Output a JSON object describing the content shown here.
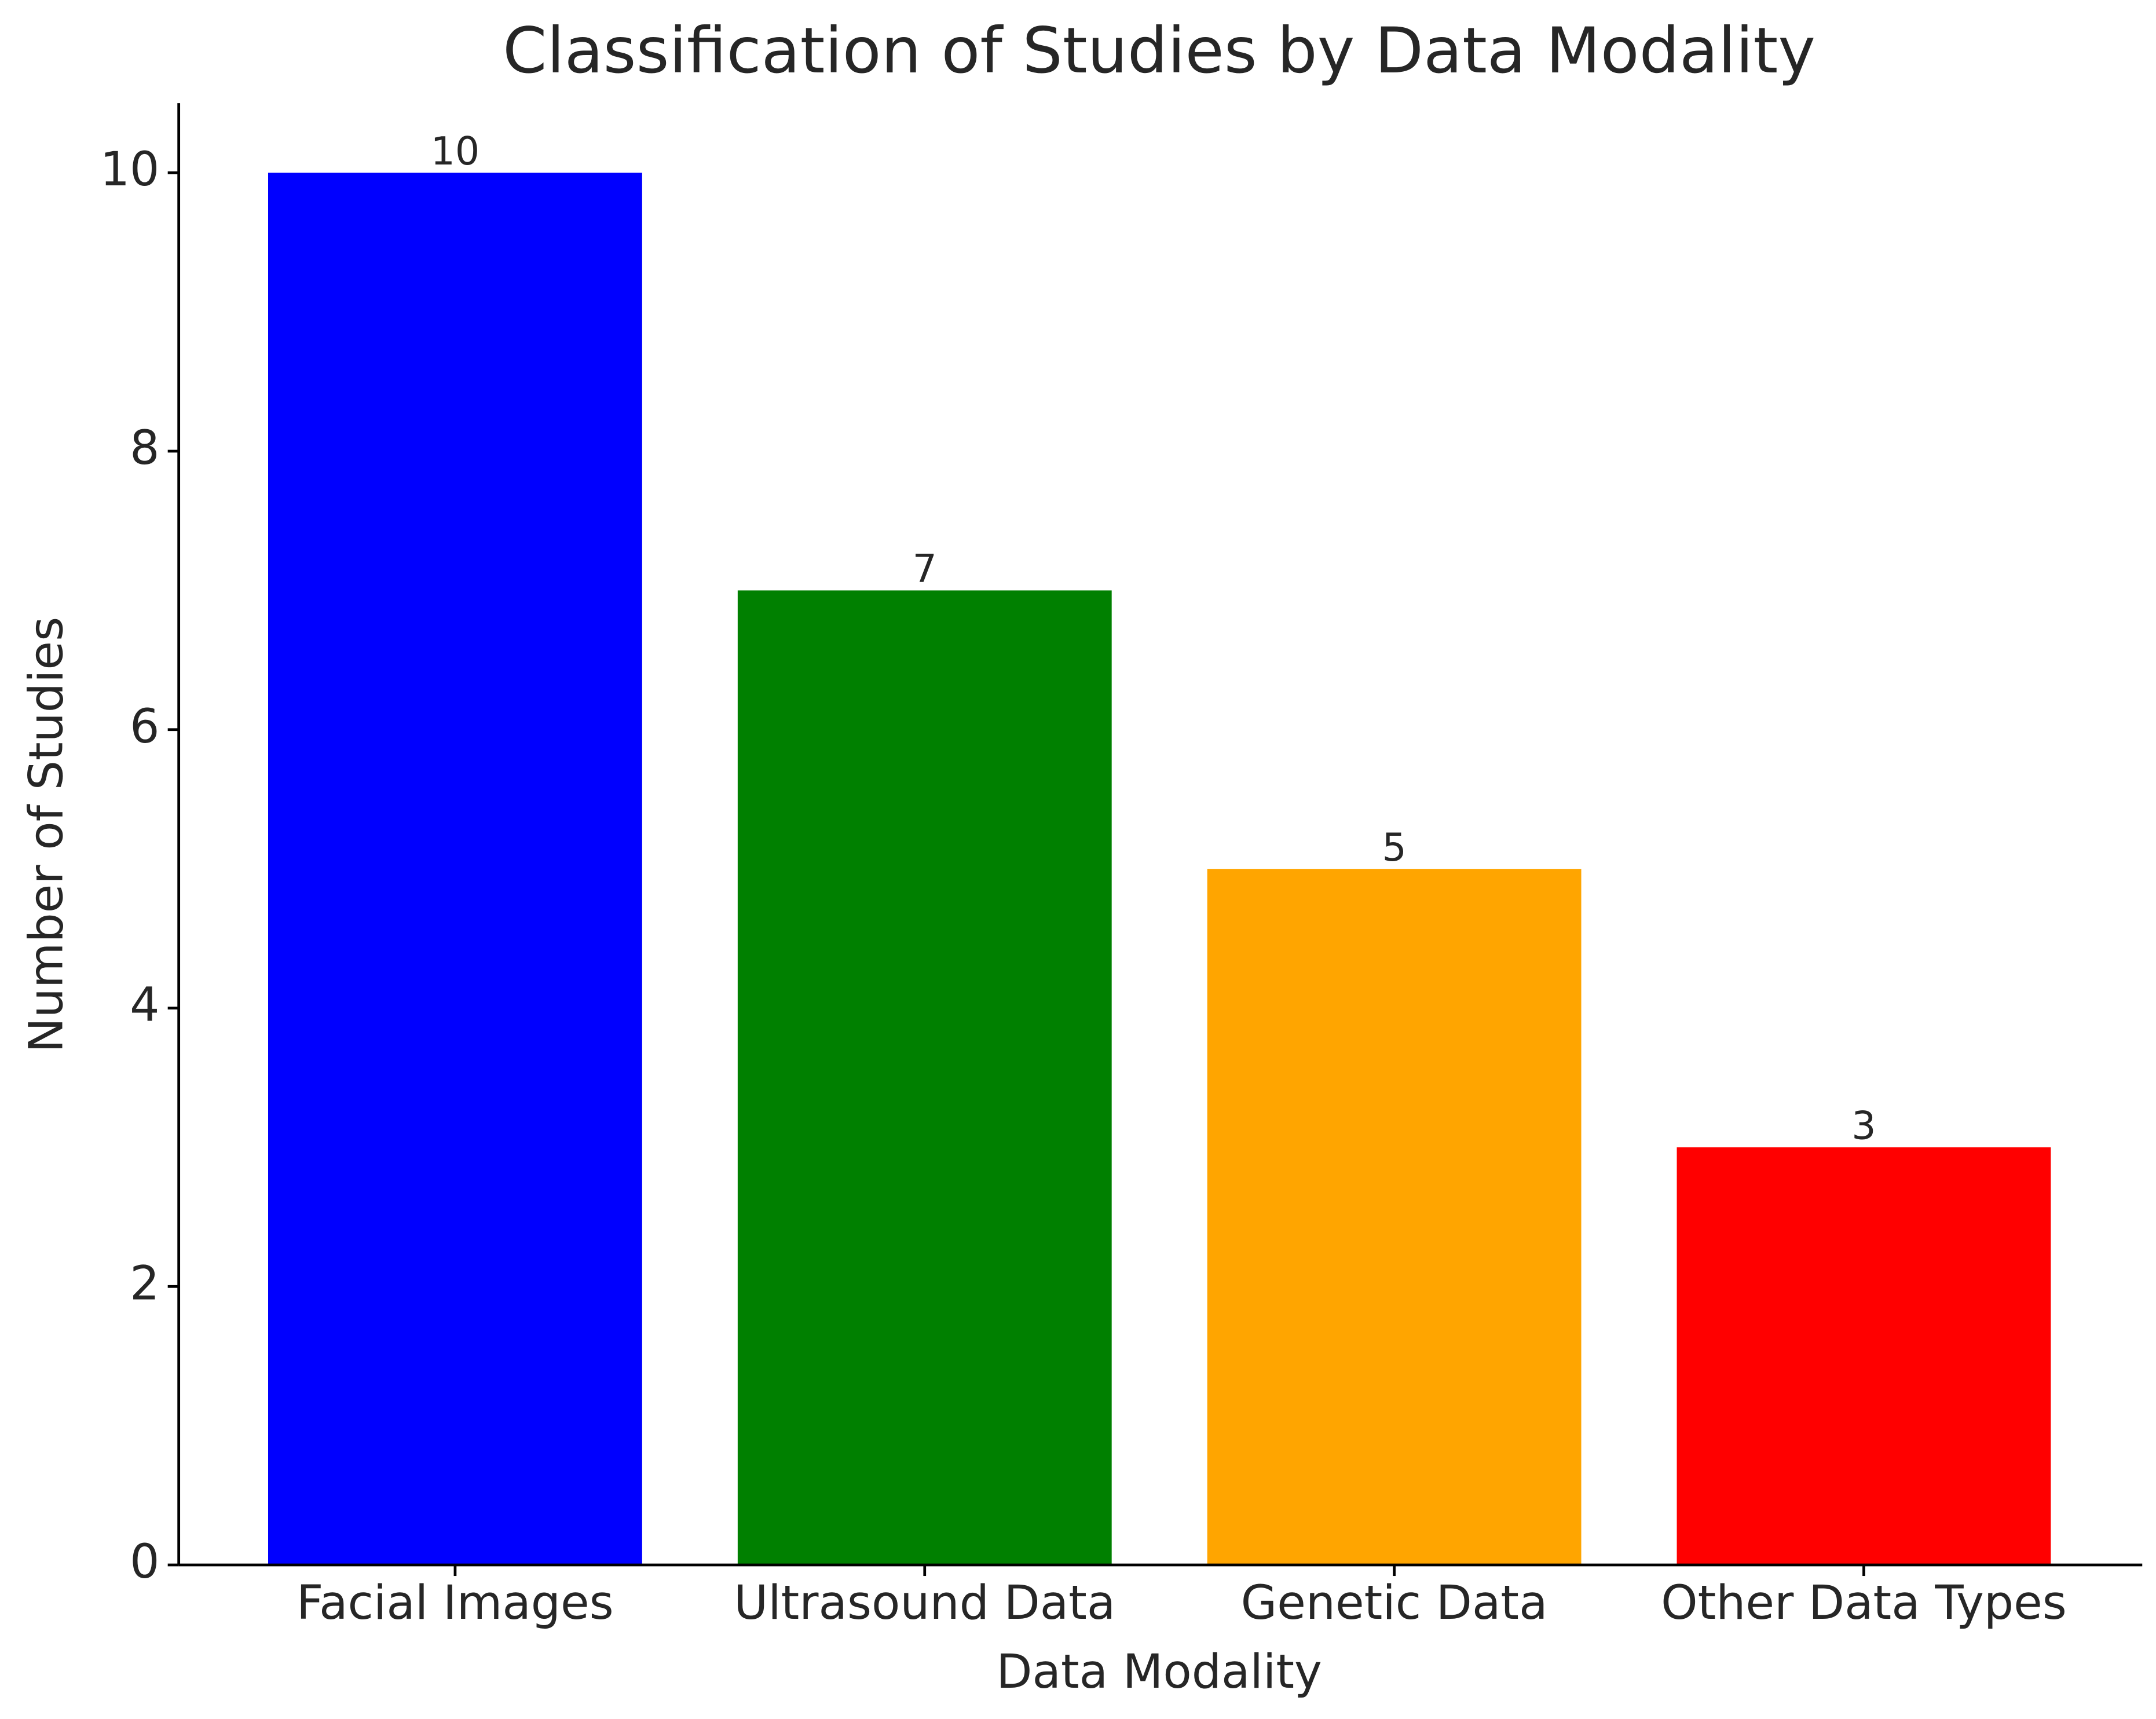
{
  "chart_data": {
    "type": "bar",
    "title": "Classification of Studies by Data Modality",
    "x_label": "Data Modality",
    "y_label": "Number of Studies",
    "categories": [
      "Facial Images",
      "Ultrasound Data",
      "Genetic Data",
      "Other Data Types"
    ],
    "values": [
      10,
      7,
      5,
      3
    ],
    "colors": [
      "#0000ff",
      "#008000",
      "#ffa500",
      "#ff0000"
    ],
    "ylim": [
      0,
      10.5
    ],
    "yticks": [
      0,
      2,
      4,
      6,
      8,
      10
    ],
    "grid": false
  }
}
